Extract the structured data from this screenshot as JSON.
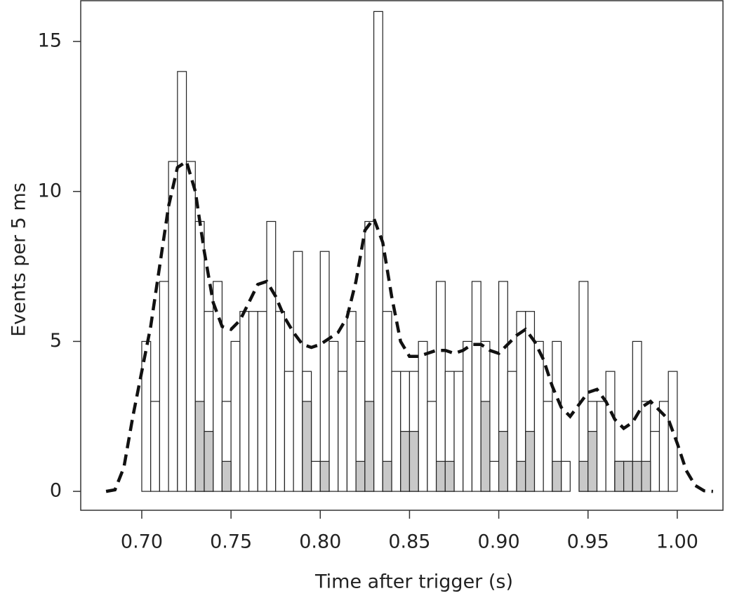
{
  "chart_data": {
    "type": "histogram",
    "xlabel": "Time after trigger (s)",
    "ylabel": "Events per 5 ms",
    "bins": [
      0.7,
      0.705,
      0.71,
      0.715,
      0.72,
      0.725,
      0.73,
      0.735,
      0.74,
      0.745,
      0.75,
      0.755,
      0.76,
      0.765,
      0.77,
      0.775,
      0.78,
      0.785,
      0.79,
      0.795,
      0.8,
      0.805,
      0.81,
      0.815,
      0.82,
      0.825,
      0.83,
      0.835,
      0.84,
      0.845,
      0.85,
      0.855,
      0.86,
      0.865,
      0.87,
      0.875,
      0.88,
      0.885,
      0.89,
      0.895,
      0.9,
      0.905,
      0.91,
      0.915,
      0.92,
      0.925,
      0.93,
      0.935,
      0.94,
      0.945,
      0.95,
      0.955,
      0.96,
      0.965,
      0.97,
      0.975,
      0.98,
      0.985,
      0.99,
      0.995,
      1.0
    ],
    "series": [
      {
        "color": "#ffffff",
        "values": [
          5,
          3,
          7,
          11,
          14,
          11,
          9,
          6,
          7,
          3,
          5,
          6,
          6,
          6,
          9,
          6,
          4,
          8,
          4,
          1,
          8,
          5,
          4,
          6,
          5,
          9,
          16,
          6,
          4,
          4,
          4,
          5,
          3,
          7,
          4,
          4,
          5,
          7,
          5,
          1,
          7,
          4,
          6,
          6,
          5,
          3,
          5,
          1,
          0,
          7,
          3,
          3,
          4,
          1,
          1,
          5,
          3,
          2,
          3,
          4
        ]
      },
      {
        "color": "#c8c8c8",
        "values": [
          0,
          0,
          0,
          0,
          0,
          0,
          3,
          2,
          0,
          1,
          0,
          0,
          0,
          0,
          0,
          0,
          0,
          0,
          3,
          0,
          1,
          0,
          0,
          0,
          1,
          3,
          0,
          1,
          0,
          2,
          2,
          0,
          0,
          1,
          1,
          0,
          0,
          0,
          3,
          0,
          2,
          0,
          1,
          2,
          0,
          0,
          1,
          0,
          0,
          1,
          2,
          0,
          0,
          1,
          1,
          1,
          1,
          0,
          0,
          0
        ]
      }
    ],
    "curve": {
      "color": "#111111",
      "x": [
        0.68,
        0.685,
        0.69,
        0.695,
        0.7,
        0.705,
        0.71,
        0.715,
        0.72,
        0.725,
        0.73,
        0.735,
        0.74,
        0.745,
        0.75,
        0.755,
        0.76,
        0.765,
        0.77,
        0.775,
        0.78,
        0.785,
        0.79,
        0.795,
        0.8,
        0.805,
        0.81,
        0.815,
        0.82,
        0.825,
        0.83,
        0.835,
        0.84,
        0.845,
        0.85,
        0.855,
        0.86,
        0.865,
        0.87,
        0.875,
        0.88,
        0.885,
        0.89,
        0.895,
        0.9,
        0.905,
        0.91,
        0.915,
        0.92,
        0.925,
        0.93,
        0.935,
        0.94,
        0.945,
        0.95,
        0.955,
        0.96,
        0.965,
        0.97,
        0.975,
        0.98,
        0.985,
        0.99,
        0.995,
        1.0,
        1.005,
        1.01,
        1.015,
        1.02
      ],
      "values": [
        0,
        0.05,
        0.8,
        2.5,
        4.0,
        5.5,
        7.5,
        9.5,
        10.8,
        11,
        10,
        8,
        6.3,
        5.5,
        5.4,
        5.7,
        6.3,
        6.9,
        7.0,
        6.5,
        5.8,
        5.3,
        4.9,
        4.8,
        4.9,
        5.1,
        5.3,
        5.8,
        7.0,
        8.7,
        9.1,
        8.3,
        6.5,
        5.0,
        4.5,
        4.5,
        4.6,
        4.7,
        4.7,
        4.6,
        4.7,
        4.9,
        4.9,
        4.7,
        4.6,
        4.9,
        5.2,
        5.4,
        5.0,
        4.4,
        3.5,
        2.8,
        2.5,
        2.9,
        3.3,
        3.4,
        3.0,
        2.4,
        2.1,
        2.3,
        2.8,
        3.0,
        2.7,
        2.4,
        1.6,
        0.7,
        0.2,
        0.02,
        0
      ]
    },
    "xlim": [
      0.6658,
      1.0256
    ],
    "ylim": [
      -0.63,
      16.36
    ],
    "xticks": [
      {
        "value": 0.7,
        "label": "0.70"
      },
      0.75,
      {
        "value": 0.8,
        "label": "0.80"
      },
      0.85,
      {
        "value": 0.9,
        "label": "0.90"
      },
      0.95,
      {
        "value": 1.0,
        "label": "1.00"
      }
    ],
    "yticks": [
      0,
      5,
      10,
      15
    ]
  }
}
